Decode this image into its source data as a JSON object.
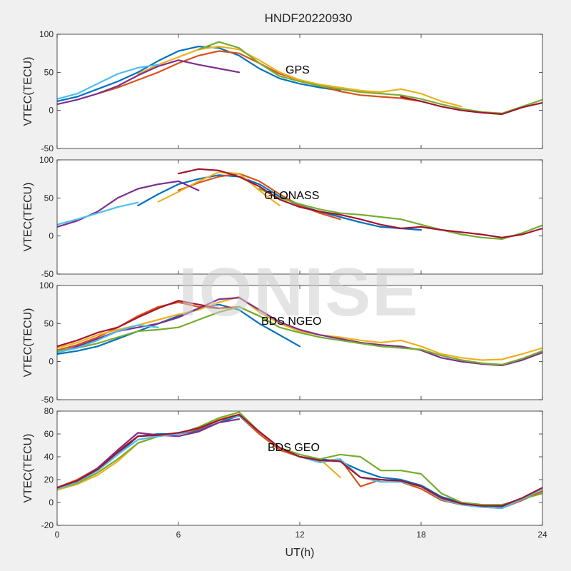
{
  "title": "HNDF20220930",
  "watermark": "IONISE",
  "xlabel": "UT(h)",
  "x_ticks": [
    0,
    6,
    12,
    18,
    24
  ],
  "colors": [
    "#0072BD",
    "#D95319",
    "#EDB120",
    "#7E2F8E",
    "#77AC30",
    "#4DBEEE",
    "#A2142F"
  ],
  "chart_data": [
    {
      "type": "line",
      "label": "GPS",
      "ylabel": "VTEC(TECU)",
      "xlim": [
        0,
        24
      ],
      "ylim": [
        -50,
        100
      ],
      "y_ticks": [
        -50,
        0,
        50,
        100
      ],
      "series": [
        {
          "x": [
            0,
            1,
            2,
            3,
            4,
            5,
            6,
            7,
            8,
            9,
            10,
            11,
            12,
            13,
            14
          ],
          "values": [
            12,
            18,
            28,
            38,
            50,
            65,
            78,
            84,
            82,
            72,
            55,
            42,
            35,
            30,
            26
          ]
        },
        {
          "x": [
            2,
            3,
            4,
            5,
            6,
            7,
            8,
            9,
            10,
            11,
            12,
            13,
            14,
            15,
            16,
            17,
            18
          ],
          "values": [
            22,
            30,
            40,
            50,
            62,
            72,
            78,
            75,
            62,
            48,
            40,
            32,
            25,
            20,
            18,
            16,
            12
          ]
        },
        {
          "x": [
            4,
            5,
            6,
            7,
            8,
            9,
            10,
            11,
            12,
            13,
            14,
            15,
            16,
            17,
            18,
            19,
            20
          ],
          "values": [
            48,
            60,
            70,
            80,
            84,
            80,
            66,
            50,
            40,
            34,
            30,
            26,
            24,
            28,
            22,
            12,
            5
          ]
        },
        {
          "x": [
            0,
            1,
            2,
            3,
            4,
            5,
            6,
            7,
            8,
            9
          ],
          "values": [
            8,
            14,
            22,
            32,
            46,
            58,
            66,
            60,
            55,
            50
          ]
        },
        {
          "x": [
            7,
            8,
            9,
            10,
            11,
            12,
            13,
            14,
            15,
            16,
            17,
            18,
            19,
            20,
            21,
            22,
            23,
            24
          ],
          "values": [
            80,
            90,
            82,
            62,
            45,
            38,
            32,
            28,
            24,
            22,
            20,
            15,
            8,
            2,
            -2,
            -4,
            5,
            14
          ]
        },
        {
          "x": [
            0,
            1,
            2,
            3,
            4,
            5
          ],
          "values": [
            15,
            22,
            35,
            48,
            56,
            60
          ]
        },
        {
          "x": [
            17,
            18,
            19,
            20,
            21,
            22,
            23,
            24
          ],
          "values": [
            18,
            12,
            5,
            0,
            -3,
            -5,
            4,
            10
          ]
        }
      ]
    },
    {
      "type": "line",
      "label": "GLONASS",
      "ylabel": "VTEC(TECU)",
      "xlim": [
        0,
        24
      ],
      "ylim": [
        -50,
        100
      ],
      "y_ticks": [
        -50,
        0,
        50,
        100
      ],
      "series": [
        {
          "x": [
            4,
            5,
            6,
            7,
            8,
            9,
            10,
            11,
            12,
            13,
            14,
            15,
            16,
            17,
            18
          ],
          "values": [
            40,
            55,
            68,
            75,
            80,
            78,
            68,
            52,
            40,
            32,
            25,
            18,
            12,
            10,
            8
          ]
        },
        {
          "x": [
            6,
            7,
            8,
            9,
            10,
            11,
            12,
            13,
            14
          ],
          "values": [
            60,
            70,
            78,
            82,
            72,
            55,
            40,
            30,
            22
          ]
        },
        {
          "x": [
            5,
            6,
            7,
            8,
            9,
            10,
            11
          ],
          "values": [
            45,
            58,
            72,
            84,
            82,
            60,
            40
          ]
        },
        {
          "x": [
            0,
            1,
            2,
            3,
            4,
            5,
            6,
            7
          ],
          "values": [
            12,
            20,
            32,
            50,
            62,
            68,
            72,
            60
          ]
        },
        {
          "x": [
            10,
            11,
            12,
            13,
            14,
            15,
            16,
            17,
            18,
            19,
            20,
            21,
            22,
            23,
            24
          ],
          "values": [
            62,
            50,
            42,
            35,
            30,
            28,
            25,
            22,
            15,
            8,
            2,
            -2,
            -4,
            4,
            14
          ]
        },
        {
          "x": [
            0,
            1,
            2,
            3,
            4
          ],
          "values": [
            15,
            22,
            30,
            38,
            44
          ]
        },
        {
          "x": [
            6,
            7,
            8,
            9,
            10,
            11,
            12,
            13,
            14,
            15,
            16,
            17,
            18,
            19,
            20,
            21,
            22,
            23,
            24
          ],
          "values": [
            82,
            88,
            86,
            78,
            65,
            48,
            38,
            32,
            28,
            22,
            15,
            10,
            12,
            8,
            5,
            2,
            -2,
            2,
            10
          ]
        }
      ]
    },
    {
      "type": "line",
      "label": "BDS NGEO",
      "ylabel": "VTEC(TECU)",
      "xlim": [
        0,
        24
      ],
      "ylim": [
        -50,
        100
      ],
      "y_ticks": [
        -50,
        0,
        50,
        100
      ],
      "series": [
        {
          "x": [
            0,
            1,
            2,
            3,
            4,
            5,
            6,
            7,
            8,
            9,
            10,
            11,
            12
          ],
          "values": [
            10,
            14,
            20,
            30,
            40,
            50,
            60,
            70,
            75,
            68,
            50,
            35,
            20
          ]
        },
        {
          "x": [
            0,
            1,
            2,
            3,
            4,
            5,
            6,
            7,
            8,
            9,
            10
          ],
          "values": [
            15,
            22,
            32,
            45,
            60,
            72,
            78,
            72,
            70,
            72,
            60
          ]
        },
        {
          "x": [
            0,
            1,
            2,
            3,
            4,
            5,
            6,
            7,
            8,
            9,
            10,
            11,
            12,
            13,
            14,
            15,
            16,
            17,
            18,
            19,
            20,
            21,
            22,
            23,
            24
          ],
          "values": [
            18,
            25,
            35,
            42,
            48,
            55,
            62,
            68,
            78,
            85,
            65,
            50,
            40,
            35,
            32,
            28,
            25,
            28,
            20,
            10,
            5,
            2,
            3,
            10,
            18
          ]
        },
        {
          "x": [
            0,
            1,
            2,
            3,
            4,
            5,
            6,
            7,
            8,
            9,
            10,
            11,
            12,
            13,
            14,
            15,
            16,
            17,
            18,
            19,
            20,
            21,
            22,
            23,
            24
          ],
          "values": [
            12,
            20,
            30,
            40,
            45,
            50,
            58,
            70,
            82,
            84,
            68,
            52,
            42,
            35,
            30,
            25,
            22,
            20,
            15,
            5,
            0,
            -3,
            -5,
            2,
            12
          ]
        },
        {
          "x": [
            0,
            1,
            2,
            3,
            4,
            5,
            6,
            7,
            8,
            9,
            10,
            11,
            12,
            13,
            14,
            15,
            16,
            17,
            18,
            19,
            20,
            21,
            22,
            23,
            24
          ],
          "values": [
            14,
            18,
            24,
            32,
            40,
            42,
            45,
            55,
            65,
            72,
            60,
            45,
            38,
            32,
            28,
            24,
            20,
            18,
            16,
            8,
            2,
            -2,
            -4,
            4,
            14
          ]
        },
        {
          "x": [
            0,
            1,
            2,
            3,
            4,
            5
          ],
          "values": [
            12,
            18,
            28,
            40,
            48,
            45
          ]
        },
        {
          "x": [
            0,
            1,
            2,
            3,
            4,
            5,
            6,
            7,
            8
          ],
          "values": [
            20,
            28,
            38,
            45,
            58,
            70,
            80,
            75,
            70
          ]
        }
      ]
    },
    {
      "type": "line",
      "label": "BDS GEO",
      "ylabel": "VTEC(TECU)",
      "xlim": [
        0,
        24
      ],
      "ylim": [
        -20,
        80
      ],
      "y_ticks": [
        -20,
        0,
        20,
        40,
        60,
        80
      ],
      "series": [
        {
          "x": [
            0,
            1,
            2,
            3,
            4,
            5,
            6,
            7,
            8,
            9,
            10,
            11,
            12,
            13,
            14,
            15,
            16,
            17,
            18,
            19,
            20,
            21,
            22,
            23,
            24
          ],
          "values": [
            12,
            18,
            28,
            42,
            58,
            60,
            60,
            63,
            70,
            76,
            62,
            48,
            40,
            38,
            36,
            28,
            22,
            20,
            15,
            5,
            0,
            -2,
            -4,
            2,
            10
          ]
        },
        {
          "x": [
            0,
            1,
            2,
            3,
            4,
            5,
            6,
            7,
            8,
            9,
            10,
            11,
            12,
            13,
            14,
            15,
            16,
            17,
            18,
            19,
            20,
            21,
            22,
            23,
            24
          ],
          "values": [
            13,
            20,
            30,
            45,
            58,
            59,
            60,
            64,
            72,
            76,
            60,
            46,
            40,
            36,
            38,
            14,
            20,
            18,
            12,
            2,
            -2,
            -4,
            -5,
            2,
            10
          ]
        },
        {
          "x": [
            0,
            1,
            2,
            3,
            4,
            5,
            6,
            7,
            8,
            9,
            10,
            11,
            12,
            13,
            14
          ],
          "values": [
            11,
            16,
            24,
            36,
            52,
            58,
            60,
            65,
            73,
            77,
            62,
            48,
            40,
            38,
            22
          ]
        },
        {
          "x": [
            0,
            1,
            2,
            3,
            4,
            5,
            6,
            7,
            8,
            9
          ],
          "values": [
            12,
            19,
            30,
            46,
            61,
            59,
            58,
            62,
            70,
            73
          ]
        },
        {
          "x": [
            0,
            1,
            2,
            3,
            4,
            5,
            6,
            7,
            8,
            9,
            10,
            11,
            12,
            13,
            14,
            15,
            16,
            17,
            18,
            19,
            20,
            21,
            22,
            23,
            24
          ],
          "values": [
            12,
            17,
            26,
            38,
            52,
            58,
            60,
            66,
            74,
            79,
            62,
            48,
            42,
            38,
            42,
            40,
            28,
            28,
            25,
            8,
            0,
            -2,
            -2,
            3,
            8
          ]
        },
        {
          "x": [
            0,
            1,
            2,
            3,
            4,
            5,
            6,
            7,
            8,
            9,
            10,
            11,
            12,
            13,
            14,
            15,
            16,
            17,
            18,
            19,
            20,
            21,
            22,
            23,
            24
          ],
          "values": [
            12,
            18,
            28,
            42,
            55,
            58,
            60,
            65,
            72,
            76,
            62,
            48,
            40,
            35,
            38,
            22,
            18,
            18,
            14,
            3,
            -2,
            -4,
            -5,
            3,
            12
          ]
        },
        {
          "x": [
            0,
            1,
            2,
            3,
            4,
            5,
            6,
            7,
            8,
            9,
            10,
            11,
            12,
            13,
            14,
            15,
            16,
            17,
            18,
            19,
            20,
            21,
            22,
            23,
            24
          ],
          "values": [
            13,
            19,
            29,
            44,
            58,
            59,
            61,
            65,
            72,
            77,
            62,
            48,
            40,
            37,
            36,
            22,
            20,
            19,
            14,
            4,
            -1,
            -3,
            -3,
            4,
            13
          ]
        }
      ]
    }
  ]
}
